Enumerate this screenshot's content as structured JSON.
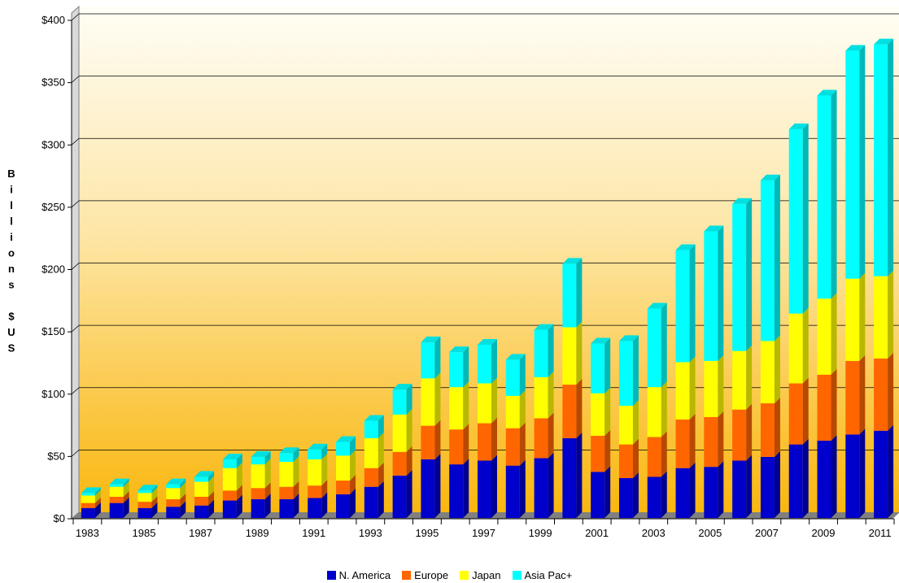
{
  "chart_data": {
    "type": "bar",
    "stacked": true,
    "categories": [
      "1983",
      "1984",
      "1985",
      "1986",
      "1987",
      "1988",
      "1989",
      "1990",
      "1991",
      "1992",
      "1993",
      "1994",
      "1995",
      "1996",
      "1997",
      "1998",
      "1999",
      "2000",
      "2001",
      "2002",
      "2003",
      "2004",
      "2005",
      "2006",
      "2007",
      "2008",
      "2009",
      "2010",
      "2011"
    ],
    "x_tick_labels": [
      "1983",
      "1985",
      "1987",
      "1989",
      "1991",
      "1993",
      "1995",
      "1997",
      "1999",
      "2001",
      "2003",
      "2005",
      "2007",
      "2009",
      "2011"
    ],
    "series": [
      {
        "name": "N. America",
        "color": "#0000cc",
        "values": [
          8,
          12,
          8,
          9,
          10,
          14,
          15,
          15,
          16,
          19,
          25,
          34,
          47,
          43,
          46,
          42,
          48,
          64,
          37,
          32,
          33,
          40,
          41,
          46,
          49,
          59,
          62,
          67,
          70
        ]
      },
      {
        "name": "Europe",
        "color": "#ff6600",
        "values": [
          4,
          5,
          5,
          6,
          7,
          8,
          9,
          10,
          10,
          11,
          15,
          19,
          27,
          28,
          30,
          30,
          32,
          43,
          29,
          27,
          32,
          39,
          40,
          41,
          43,
          49,
          53,
          59,
          58
        ]
      },
      {
        "name": "Japan",
        "color": "#ffff00",
        "values": [
          6,
          8,
          7,
          9,
          12,
          18,
          19,
          20,
          21,
          20,
          24,
          30,
          38,
          34,
          32,
          26,
          33,
          46,
          34,
          31,
          40,
          46,
          45,
          47,
          50,
          56,
          61,
          66,
          66
        ]
      },
      {
        "name": "Asia Pac+",
        "color": "#00ffff",
        "values": [
          2,
          2,
          2,
          3,
          4,
          7,
          6,
          7,
          8,
          11,
          14,
          20,
          29,
          28,
          31,
          29,
          38,
          51,
          40,
          52,
          63,
          90,
          104,
          118,
          129,
          148,
          163,
          183,
          186
        ]
      }
    ],
    "ylabel": "Billions $US",
    "y_tick_labels": [
      "$0",
      "$50",
      "$100",
      "$150",
      "$200",
      "$250",
      "$300",
      "$350",
      "$400"
    ],
    "ylim": [
      0,
      400
    ],
    "grid": true,
    "legend": "bottom-center"
  }
}
